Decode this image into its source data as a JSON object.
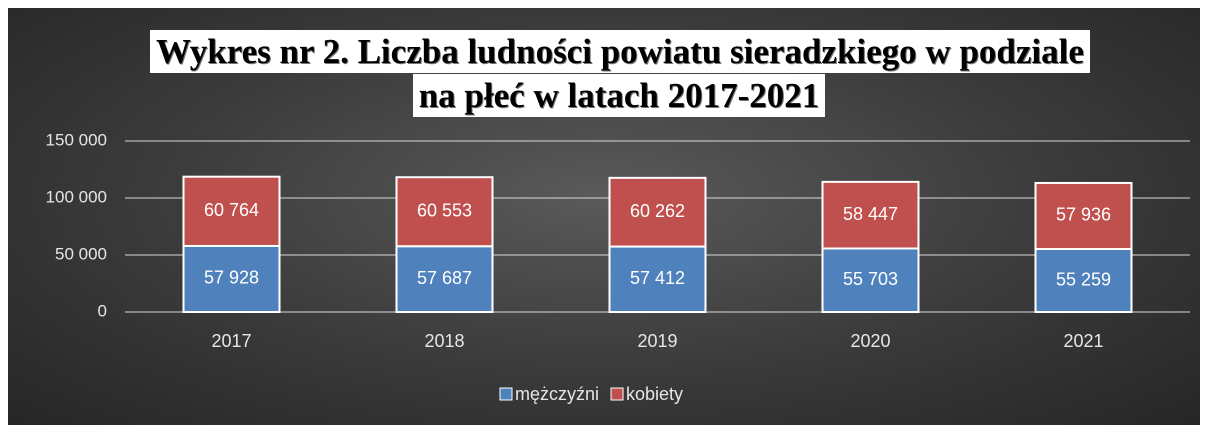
{
  "chart_data": {
    "type": "bar",
    "stacked": true,
    "title": "Wykres nr 2. Liczba ludności powiatu sieradzkiego w podziale na płeć w latach 2017-2021",
    "categories": [
      "2017",
      "2018",
      "2019",
      "2020",
      "2021"
    ],
    "series": [
      {
        "name": "mężczyźni",
        "color": "#4f81bd",
        "values": [
          57928,
          57687,
          57412,
          55703,
          55259
        ],
        "value_labels": [
          "57 928",
          "57 687",
          "57 412",
          "55 703",
          "55 259"
        ]
      },
      {
        "name": "kobiety",
        "color": "#c0504d",
        "values": [
          60764,
          60553,
          60262,
          58447,
          57936
        ],
        "value_labels": [
          "60 764",
          "60 553",
          "60 262",
          "58 447",
          "57 936"
        ]
      }
    ],
    "ylim": [
      0,
      150000
    ],
    "yticks": [
      0,
      {
        "value": 50000,
        "label": "50 000"
      },
      {
        "value": 100000,
        "label": "100 000"
      },
      {
        "value": 150000,
        "label": "150 000"
      }
    ],
    "grid": true,
    "legend": "bottom"
  }
}
